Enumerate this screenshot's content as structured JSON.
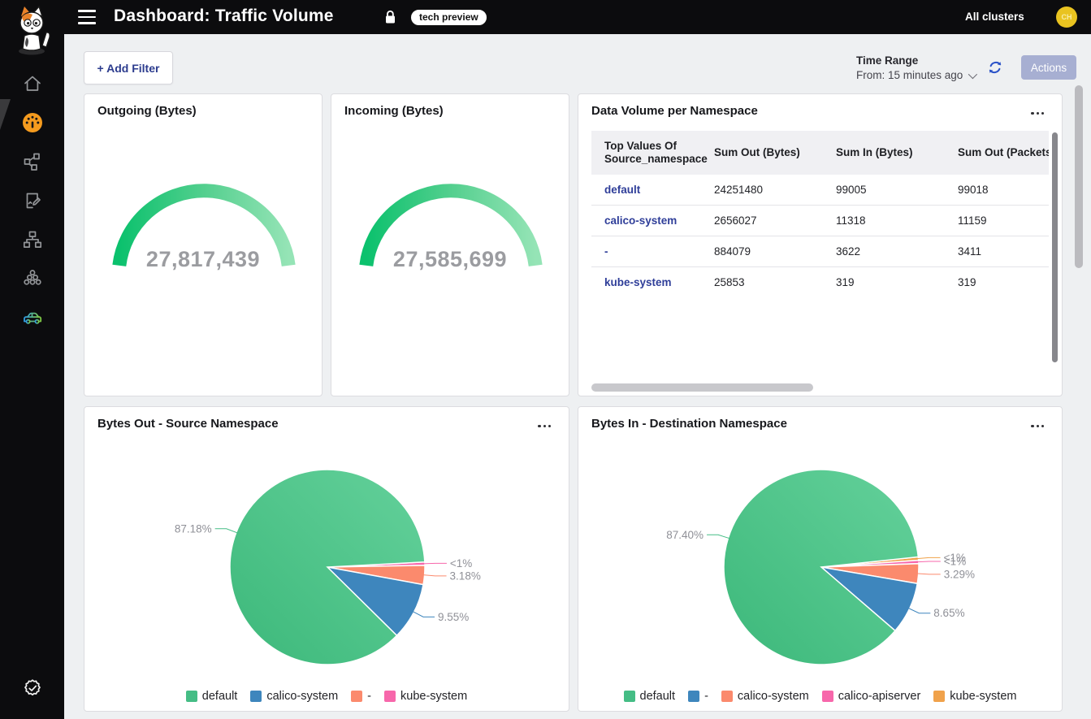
{
  "header": {
    "title": "Dashboard: Traffic Volume",
    "badge": "tech preview",
    "clusters_label": "All clusters",
    "avatar_initials": "CH"
  },
  "sidebar": {
    "icons": [
      "calico-cat-logo",
      "home",
      "dashboard-gauge",
      "node-graph",
      "document-edit",
      "sitemap",
      "circles-cluster",
      "car",
      "seal-check"
    ]
  },
  "toolbar": {
    "add_filter_label": "+ Add Filter",
    "time_range_label": "Time Range",
    "time_range_value": "From: 15 minutes ago",
    "actions_label": "Actions"
  },
  "chart_data": [
    {
      "type": "gauge",
      "title": "Outgoing (Bytes)",
      "value": 27817439,
      "display": "27,817,439",
      "color_start": "#0bc16d",
      "color_end": "#95e4b6"
    },
    {
      "type": "gauge",
      "title": "Incoming (Bytes)",
      "value": 27585699,
      "display": "27,585,699",
      "color_start": "#0bc16d",
      "color_end": "#95e4b6"
    },
    {
      "type": "table",
      "title": "Data Volume per Namespace",
      "columns": [
        "Top Values Of Source_namespace",
        "Sum Out (Bytes)",
        "Sum In (Bytes)",
        "Sum Out (Packets)"
      ],
      "rows": [
        [
          "default",
          "24251480",
          "99005",
          "99018"
        ],
        [
          "calico-system",
          "2656027",
          "11318",
          "11159"
        ],
        [
          "-",
          "884079",
          "3622",
          "3411"
        ],
        [
          "kube-system",
          "25853",
          "319",
          "319"
        ]
      ]
    },
    {
      "type": "pie",
      "title": "Bytes Out - Source Namespace",
      "start_deg": 87,
      "legend_position": "bottom",
      "slices": [
        {
          "label": "default",
          "pct": 87.18,
          "display": "87.18%",
          "color": "#45bd85",
          "gradient": true
        },
        {
          "label": "calico-system",
          "pct": 9.55,
          "display": "9.55%",
          "color": "#3e86bd"
        },
        {
          "label": "-",
          "pct": 3.18,
          "display": "3.18%",
          "color": "#fb8a6d"
        },
        {
          "label": "kube-system",
          "pct": 0.09,
          "display": "<1%",
          "color": "#f767ab"
        }
      ]
    },
    {
      "type": "pie",
      "title": "Bytes In - Destination Namespace",
      "start_deg": 84,
      "legend_position": "bottom",
      "slices": [
        {
          "label": "default",
          "pct": 87.4,
          "display": "87.40%",
          "color": "#45bd85",
          "gradient": true
        },
        {
          "label": "-",
          "pct": 8.65,
          "display": "8.65%",
          "color": "#3e86bd"
        },
        {
          "label": "calico-system",
          "pct": 3.29,
          "display": "3.29%",
          "color": "#fb8a6d"
        },
        {
          "label": "calico-apiserver",
          "pct": 0.21,
          "display": "<1%",
          "color": "#f767ab"
        },
        {
          "label": "kube-system",
          "pct": 0.45,
          "display": "<1%",
          "color": "#f0a24b"
        }
      ]
    }
  ]
}
